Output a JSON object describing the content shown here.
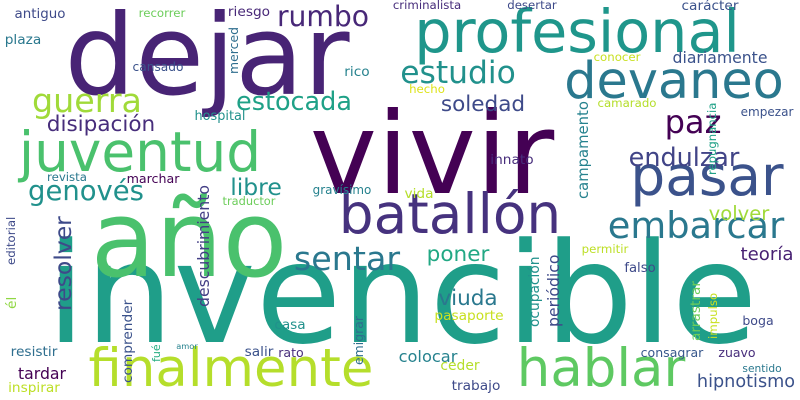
{
  "background": "#ffffff",
  "words": [
    {
      "text": "vivir",
      "color": "#440154"
    },
    {
      "text": "invencible",
      "color": "#1f9e89"
    },
    {
      "text": "dejar",
      "color": "#482475"
    },
    {
      "text": "año",
      "color": "#4ac16d"
    },
    {
      "text": "finalmente",
      "color": "#b5de2b"
    },
    {
      "text": "profesional",
      "color": "#1f968b"
    },
    {
      "text": "devaneo",
      "color": "#2a788e"
    },
    {
      "text": "batallón",
      "color": "#46327e"
    },
    {
      "text": "hablar",
      "color": "#5ec962"
    },
    {
      "text": "pasar",
      "color": "#3b528b"
    },
    {
      "text": "juventud",
      "color": "#4ac16d"
    },
    {
      "text": "embarcar",
      "color": "#2a788e"
    },
    {
      "text": "guerra",
      "color": "#a0da39"
    },
    {
      "text": "estudio",
      "color": "#21918c"
    },
    {
      "text": "sentar",
      "color": "#2a788e"
    },
    {
      "text": "estocada",
      "color": "#1fa187"
    },
    {
      "text": "rumbo",
      "color": "#482878"
    },
    {
      "text": "paz",
      "color": "#440154"
    },
    {
      "text": "endulzar",
      "color": "#414487"
    },
    {
      "text": "viuda",
      "color": "#2a788e"
    },
    {
      "text": "genovés",
      "color": "#21918c"
    },
    {
      "text": "soledad",
      "color": "#3e4a89"
    },
    {
      "text": "disipación",
      "color": "#472d7b"
    },
    {
      "text": "poner",
      "color": "#22a884"
    },
    {
      "text": "libre",
      "color": "#21918c"
    },
    {
      "text": "volver",
      "color": "#a0da39"
    },
    {
      "text": "teoría",
      "color": "#482173"
    },
    {
      "text": "resolver",
      "color": "#3e4a89"
    },
    {
      "text": "hipnotismo",
      "color": "#3b528b"
    },
    {
      "text": "diariamente",
      "color": "#3b528b"
    },
    {
      "text": "ceder",
      "color": "#b5de2b"
    },
    {
      "text": "colocar",
      "color": "#26828e"
    },
    {
      "text": "salir",
      "color": "#3b528b"
    },
    {
      "text": "rato",
      "color": "#472d7b"
    },
    {
      "text": "emigrar",
      "color": "#2e6e8e"
    },
    {
      "text": "periódico",
      "color": "#3e4a89"
    },
    {
      "text": "ocupación",
      "color": "#21918c"
    },
    {
      "text": "descubrimiento",
      "color": "#433e85"
    },
    {
      "text": "pasaporte",
      "color": "#c8e020"
    },
    {
      "text": "casa",
      "color": "#21918c"
    },
    {
      "text": "consagrar",
      "color": "#38588c"
    },
    {
      "text": "zuavo",
      "color": "#472d7b"
    },
    {
      "text": "boga",
      "color": "#3e4a89"
    },
    {
      "text": "sentido",
      "color": "#2a788e"
    },
    {
      "text": "resistir",
      "color": "#2e6e8e"
    },
    {
      "text": "tardar",
      "color": "#440154"
    },
    {
      "text": "inspirar",
      "color": "#bddf26"
    },
    {
      "text": "comprender",
      "color": "#3b528b"
    },
    {
      "text": "fué",
      "color": "#26ad81"
    },
    {
      "text": "amor",
      "color": "#26828e"
    },
    {
      "text": "trabajo",
      "color": "#3e4a89"
    },
    {
      "text": "arrastrar",
      "color": "#6ccd5a"
    },
    {
      "text": "impulso",
      "color": "#c8e020"
    },
    {
      "text": "falso",
      "color": "#3e4a89"
    },
    {
      "text": "permitir",
      "color": "#bddf26"
    },
    {
      "text": "él",
      "color": "#90d743"
    },
    {
      "text": "editorial",
      "color": "#3e4a89"
    },
    {
      "text": "marchar",
      "color": "#440154"
    },
    {
      "text": "revista",
      "color": "#2a788e"
    },
    {
      "text": "traductor",
      "color": "#6ccd5a"
    },
    {
      "text": "gravísimo",
      "color": "#26828e"
    },
    {
      "text": "vida",
      "color": "#b5de2b"
    },
    {
      "text": "innato",
      "color": "#472d7b"
    },
    {
      "text": "campamento",
      "color": "#26828e"
    },
    {
      "text": "repugnancia",
      "color": "#1fa187"
    },
    {
      "text": "empezar",
      "color": "#3b528b"
    },
    {
      "text": "camarado",
      "color": "#b5de2b"
    },
    {
      "text": "hospital",
      "color": "#21918c"
    },
    {
      "text": "hecho",
      "color": "#dde318"
    },
    {
      "text": "rico",
      "color": "#26828e"
    },
    {
      "text": "conocer",
      "color": "#c8e020"
    },
    {
      "text": "merced",
      "color": "#2e6e8e"
    },
    {
      "text": "cansado",
      "color": "#3b528b"
    },
    {
      "text": "plaza",
      "color": "#2a788e"
    },
    {
      "text": "antiguo",
      "color": "#3e4a89"
    },
    {
      "text": "recorrer",
      "color": "#6ccd5a"
    },
    {
      "text": "riesgo",
      "color": "#482878"
    },
    {
      "text": "criminalista",
      "color": "#472d7b"
    },
    {
      "text": "desertar",
      "color": "#3e4a89"
    },
    {
      "text": "carácter",
      "color": "#3b528b"
    }
  ]
}
